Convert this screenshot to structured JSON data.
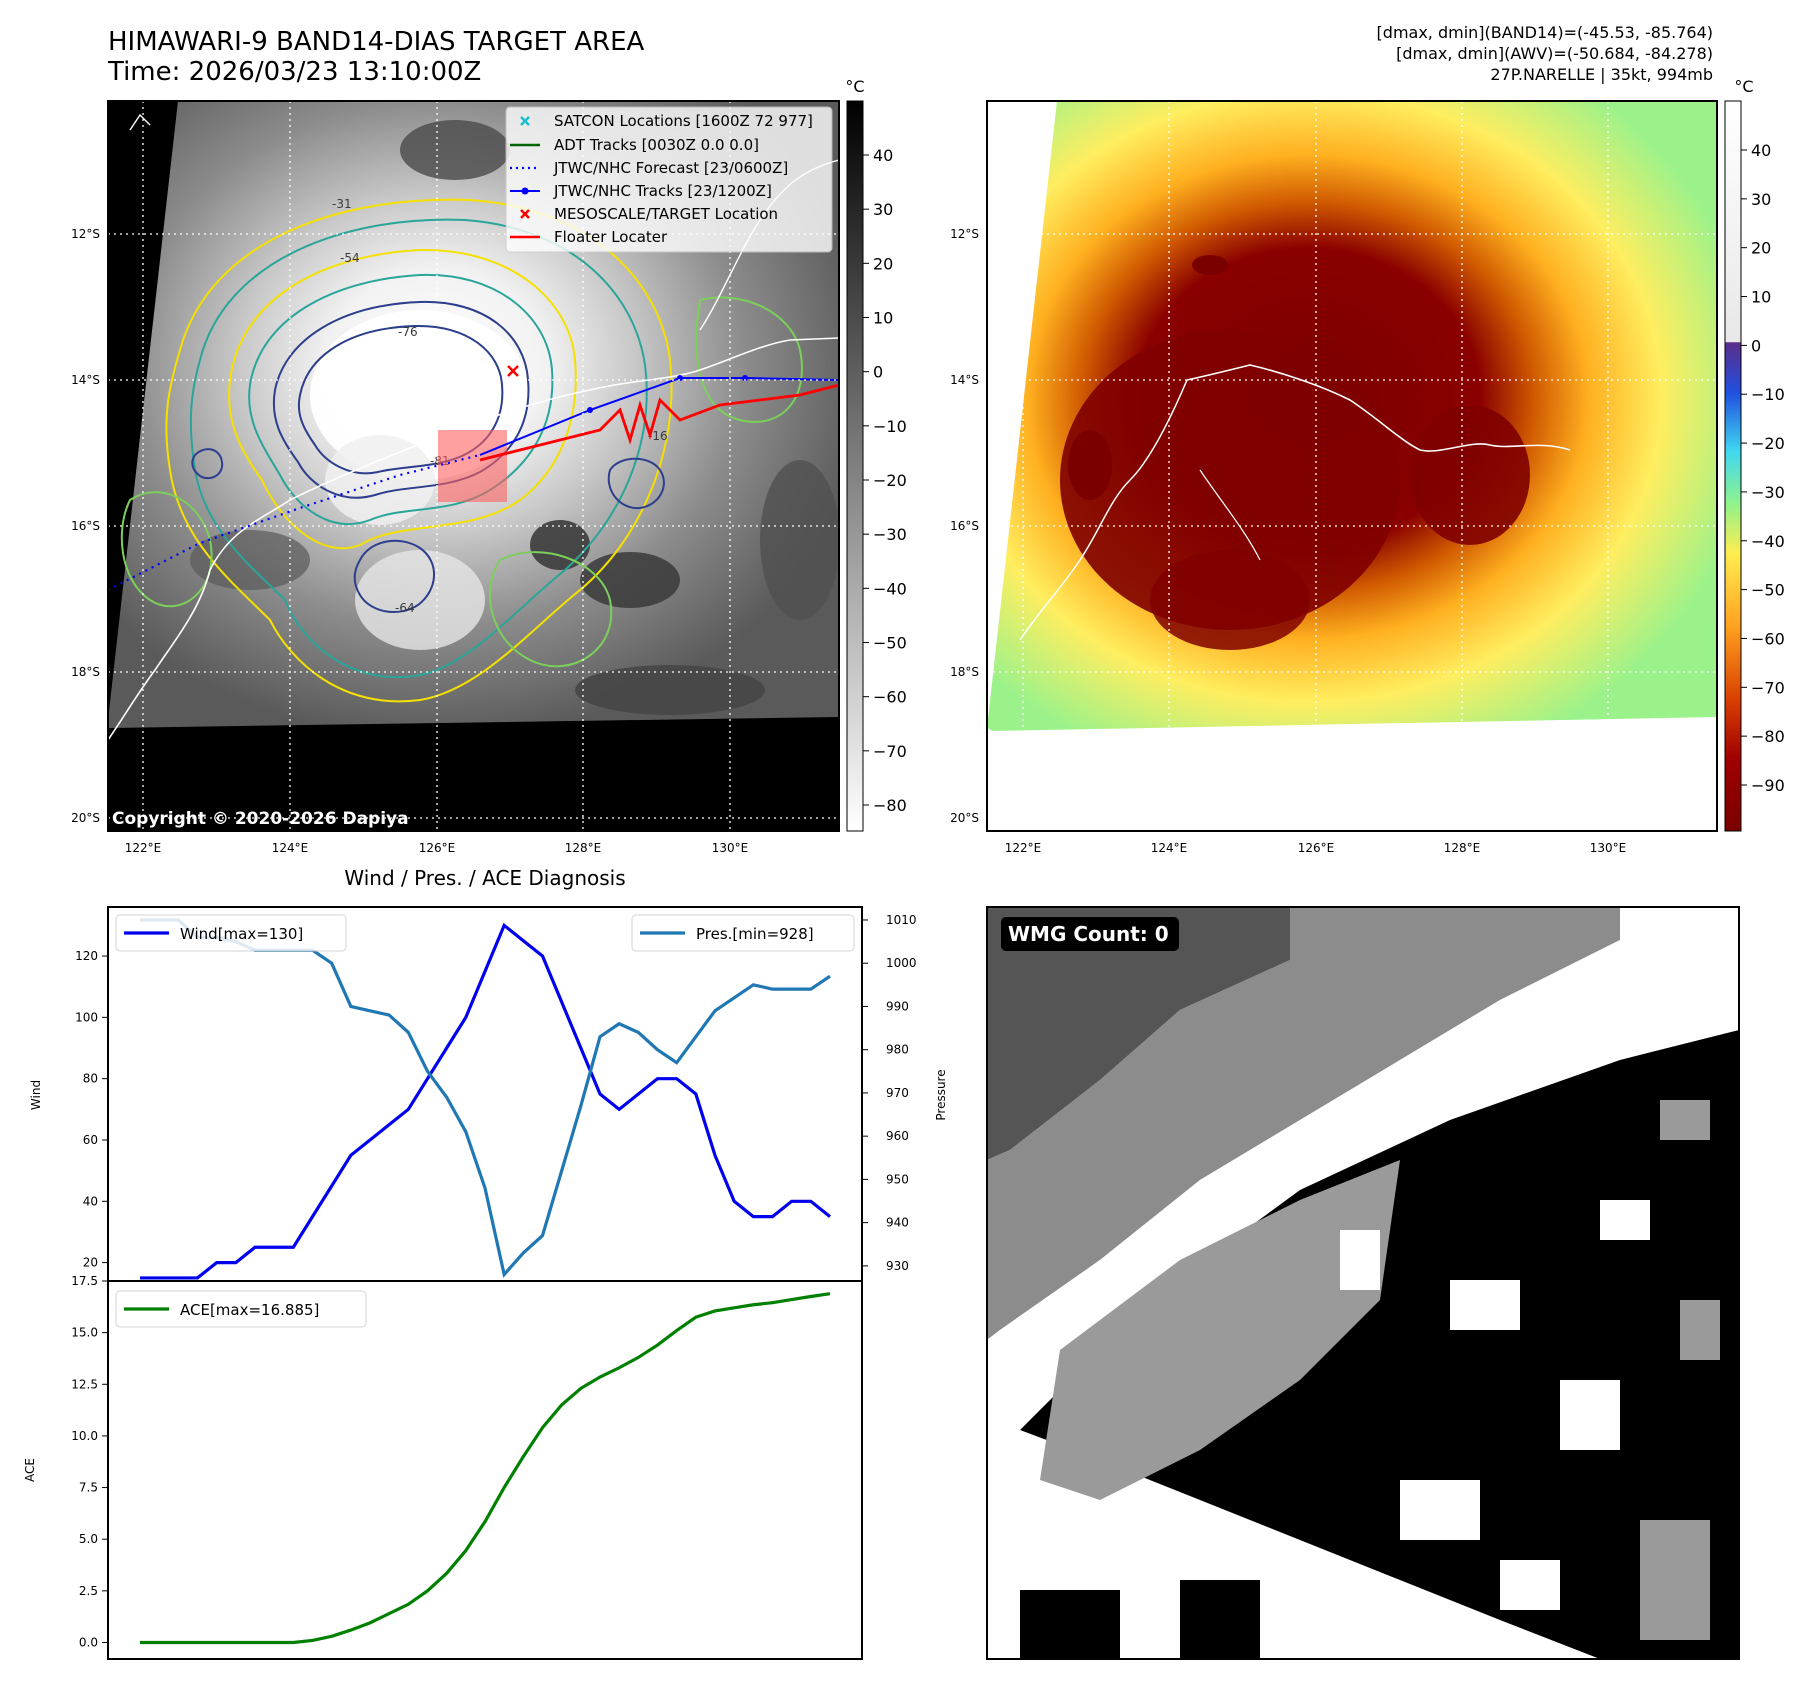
{
  "header": {
    "title_line1": "HIMAWARI-9 BAND14-DIAS TARGET AREA",
    "title_line2": "Time: 2026/03/23 13:10:00Z",
    "dmax_band14": "[dmax, dmin](BAND14)=(-45.53, -85.764)",
    "dmax_awv": "[dmax, dmin](AWV)=(-50.684, -84.278)",
    "storm_info": "27P.NARELLE | 35kt, 994mb"
  },
  "map": {
    "lat_labels": [
      "12°S",
      "14°S",
      "16°S",
      "18°S",
      "20°S"
    ],
    "lon_labels": [
      "122°E",
      "124°E",
      "126°E",
      "128°E",
      "130°E"
    ],
    "copyright": "Copyright © 2020-2026 Dapiya",
    "legend": [
      "SATCON Locations [1600Z 72 977]",
      "ADT Tracks [0030Z 0.0 0.0]",
      "JTWC/NHC Forecast [23/0600Z]",
      "JTWC/NHC Tracks [23/1200Z]",
      "MESOSCALE/TARGET Location",
      "Floater Locater"
    ],
    "contour_labels": [
      "-31",
      "-54",
      "-76",
      "-81",
      "-64",
      "-16"
    ]
  },
  "colorbar_left": {
    "unit": "°C",
    "ticks": [
      "40",
      "30",
      "20",
      "10",
      "0",
      "−10",
      "−20",
      "−30",
      "−40",
      "−50",
      "−60",
      "−70",
      "−80"
    ]
  },
  "colorbar_right": {
    "unit": "°C",
    "ticks": [
      "40",
      "30",
      "20",
      "10",
      "0",
      "−10",
      "−20",
      "−30",
      "−40",
      "−50",
      "−60",
      "−70",
      "−80",
      "−90"
    ]
  },
  "wmg": {
    "label": "WMG Count: 0"
  },
  "colors": {
    "wind": "#0000ee",
    "pressure": "#1f77b4",
    "ace": "#008000",
    "track_red": "#ff0000",
    "forecast_blue": "#0000ff"
  },
  "chart_data": [
    {
      "type": "line",
      "title": "Wind / Pres. / ACE Diagnosis",
      "xlabel": "",
      "ylabel": "Wind",
      "y2label": "Pressure",
      "ylim": [
        14,
        136
      ],
      "y2lim": [
        926.5,
        1013
      ],
      "yticks": [
        "20",
        "40",
        "60",
        "80",
        "100",
        "120"
      ],
      "y2ticks": [
        "930",
        "940",
        "950",
        "960",
        "970",
        "980",
        "990",
        "1000",
        "1010"
      ],
      "series": [
        {
          "name": "Wind[max=130]",
          "axis": "left",
          "values": [
            15,
            15,
            15,
            15,
            20,
            20,
            25,
            25,
            25,
            35,
            45,
            55,
            60,
            65,
            70,
            80,
            90,
            100,
            115,
            130,
            125,
            120,
            105,
            90,
            75,
            70,
            75,
            80,
            80,
            75,
            55,
            40,
            35,
            35,
            40,
            40,
            35
          ]
        },
        {
          "name": "Pres.[min=928]",
          "axis": "right",
          "values": [
            1010,
            1010,
            1010,
            1006,
            1006,
            1005,
            1003,
            1003,
            1003,
            1003,
            1000,
            990,
            989,
            988,
            984,
            975,
            969,
            961,
            948,
            928,
            933,
            937,
            952,
            967,
            983,
            986,
            984,
            980,
            977,
            983,
            989,
            992,
            995,
            994,
            994,
            994,
            997
          ]
        }
      ]
    },
    {
      "type": "line",
      "title": "",
      "xlabel": "",
      "ylabel": "ACE",
      "ylim": [
        -0.8,
        17.5
      ],
      "yticks": [
        "0.0",
        "2.5",
        "5.0",
        "7.5",
        "10.0",
        "12.5",
        "15.0",
        "17.5"
      ],
      "series": [
        {
          "name": "ACE[max=16.885]",
          "values": [
            0.0,
            0.0,
            0.0,
            0.0,
            0.0,
            0.0,
            0.0,
            0.0,
            0.0,
            0.1,
            0.3,
            0.6,
            0.95,
            1.4,
            1.85,
            2.5,
            3.35,
            4.45,
            5.85,
            7.5,
            9.0,
            10.4,
            11.5,
            12.3,
            12.85,
            13.3,
            13.8,
            14.4,
            15.1,
            15.75,
            16.05,
            16.2,
            16.35,
            16.45,
            16.6,
            16.75,
            16.885
          ]
        }
      ]
    }
  ]
}
